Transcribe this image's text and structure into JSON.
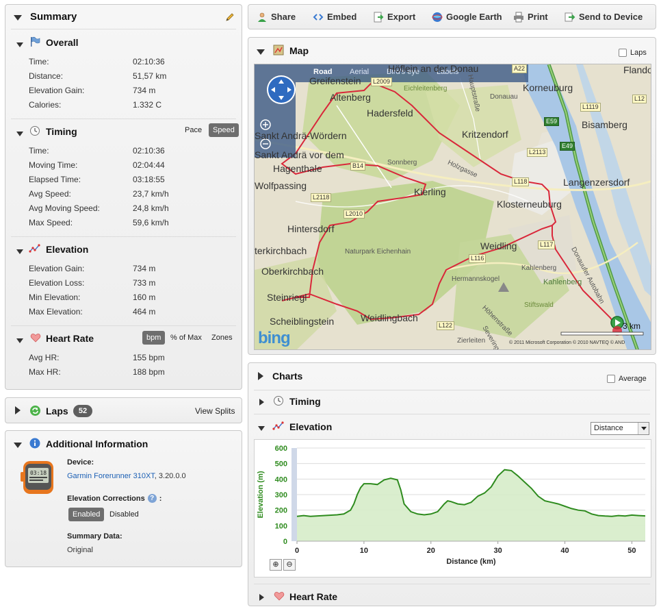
{
  "summary": {
    "title": "Summary",
    "overall": {
      "title": "Overall",
      "rows": [
        {
          "label": "Time:",
          "value": "02:10:36"
        },
        {
          "label": "Distance:",
          "value": "51,57 km"
        },
        {
          "label": "Elevation Gain:",
          "value": "734 m"
        },
        {
          "label": "Calories:",
          "value": "1.332 C"
        }
      ]
    },
    "timing": {
      "title": "Timing",
      "toggle_pace": "Pace",
      "toggle_speed": "Speed",
      "rows": [
        {
          "label": "Time:",
          "value": "02:10:36"
        },
        {
          "label": "Moving Time:",
          "value": "02:04:44"
        },
        {
          "label": "Elapsed Time:",
          "value": "03:18:55"
        },
        {
          "label": "Avg Speed:",
          "value": "23,7 km/h"
        },
        {
          "label": "Avg Moving Speed:",
          "value": "24,8 km/h"
        },
        {
          "label": "Max Speed:",
          "value": "59,6 km/h"
        }
      ]
    },
    "elevation": {
      "title": "Elevation",
      "rows": [
        {
          "label": "Elevation Gain:",
          "value": "734 m"
        },
        {
          "label": "Elevation Loss:",
          "value": "733 m"
        },
        {
          "label": "Min Elevation:",
          "value": "160 m"
        },
        {
          "label": "Max Elevation:",
          "value": "464 m"
        }
      ]
    },
    "heart_rate": {
      "title": "Heart Rate",
      "toggle_bpm": "bpm",
      "toggle_pct": "% of Max",
      "toggle_zones": "Zones",
      "rows": [
        {
          "label": "Avg HR:",
          "value": "155 bpm"
        },
        {
          "label": "Max HR:",
          "value": "188 bpm"
        }
      ]
    }
  },
  "laps": {
    "title": "Laps",
    "count": "52",
    "view_splits": "View Splits"
  },
  "additional": {
    "title": "Additional Information",
    "device_label": "Device:",
    "device_name": "Garmin Forerunner 310XT",
    "device_version": ", 3.20.0.0",
    "elev_corr_label": "Elevation Corrections",
    "elev_corr_colon": ":",
    "enabled": "Enabled",
    "disabled": "Disabled",
    "summary_data_label": "Summary Data:",
    "summary_data_value": "Original",
    "watch_digits": "03:18"
  },
  "toolbar": {
    "share": "Share",
    "embed": "Embed",
    "export": "Export",
    "google_earth": "Google Earth",
    "print": "Print",
    "send": "Send to Device"
  },
  "map": {
    "title": "Map",
    "laps_label": "Laps",
    "tabs": [
      "Road",
      "Aerial",
      "Bird's eye",
      "Labels"
    ],
    "collapse": "<<",
    "bing": "bing",
    "scale": "3 km",
    "copyright": "© 2011 Microsoft Corporation   © 2010 NAVTEQ   © AND",
    "places": {
      "hoflein": "Höflein an der Donau",
      "greifenstein": "Greifenstein",
      "altenberg": "Altenberg",
      "hadersfeld": "Hadersfeld",
      "sankt_andra": "Sankt Andrä-Wördern",
      "sankt_andra2": "Sankt Andrä vor dem",
      "hagenthale": "Hagenthale",
      "wolfpassing": "Wolfpassing",
      "kritzendorf": "Kritzendorf",
      "kierling": "Kierling",
      "klosterneuburg": "Klosterneuburg",
      "korneuburg": "Korneuburg",
      "bisamberg": "Bisamberg",
      "langenzersdorf": "Langenzersdorf",
      "flando": "Flando",
      "hintersdorf": "Hintersdorf",
      "terkirchbach": "terkirchbach",
      "oberkirchbach": "Oberkirchbach",
      "steinriegl": "Steinriegl",
      "scheiblingstein": "Scheiblingstein",
      "weidlingbach": "Weidlingbach",
      "weidling": "Weidling",
      "kahlenberg": "Kahlenberg",
      "kahlenberg2": "Kahlenberg",
      "hermannskogel": "Hermannskogel",
      "naturpark": "Naturpark Eichenhain",
      "sonnberg": "Sonnberg",
      "eichleitenberg": "Eichleitenberg",
      "donauau": "Donauau",
      "stiftswald": "Stiftswald",
      "zierleiten": "Zierleiten",
      "donauufer": "Donauufer Autobahn",
      "hauptstrasse": "Hauptstraße",
      "holzgasse": "Holzgasse",
      "hohenstrasse": "Höhenstraße",
      "severing": "Severing"
    },
    "roads": {
      "l2009": "L2009",
      "l1119": "L1119",
      "l12": "L12",
      "e59": "E59",
      "e49": "E49",
      "l2113": "L2113",
      "l118": "L118",
      "l2118": "L2118",
      "l2010": "L2010",
      "b14": "B14",
      "l117": "L117",
      "l116": "L116",
      "l122": "L122",
      "a22": "A22"
    }
  },
  "charts": {
    "title": "Charts",
    "average_label": "Average",
    "timing_title": "Timing",
    "elevation_title": "Elevation",
    "heart_rate_title": "Heart Rate",
    "x_select": "Distance"
  },
  "chart_data": {
    "type": "area",
    "title": "",
    "xlabel": "Distance (km)",
    "ylabel": "Elevation (m)",
    "xlim": [
      0,
      52
    ],
    "ylim": [
      0,
      600
    ],
    "xticks": [
      0,
      10,
      20,
      30,
      40,
      50
    ],
    "yticks": [
      0,
      100,
      200,
      300,
      400,
      500,
      600
    ],
    "grid": true,
    "series": [
      {
        "color": "#2e8b1e",
        "x": [
          0,
          1,
          2,
          4,
          6,
          7,
          8,
          8.5,
          9,
          9.5,
          10,
          11,
          12,
          12.5,
          13,
          14,
          15,
          15.5,
          16,
          17,
          18,
          19,
          20,
          21,
          22,
          22.5,
          23,
          24,
          25,
          26,
          27,
          28,
          29,
          30,
          31,
          32,
          33,
          34,
          35,
          36,
          37,
          38,
          39,
          40,
          41,
          42,
          43,
          44,
          45,
          46,
          47,
          48,
          49,
          50,
          51,
          52
        ],
        "y": [
          160,
          165,
          160,
          165,
          170,
          175,
          200,
          240,
          300,
          345,
          370,
          370,
          365,
          380,
          395,
          405,
          395,
          330,
          240,
          190,
          175,
          170,
          175,
          190,
          240,
          260,
          255,
          240,
          235,
          250,
          290,
          310,
          350,
          420,
          460,
          455,
          420,
          380,
          340,
          290,
          260,
          250,
          240,
          225,
          210,
          200,
          195,
          175,
          165,
          162,
          160,
          165,
          162,
          168,
          165,
          163
        ]
      }
    ]
  }
}
